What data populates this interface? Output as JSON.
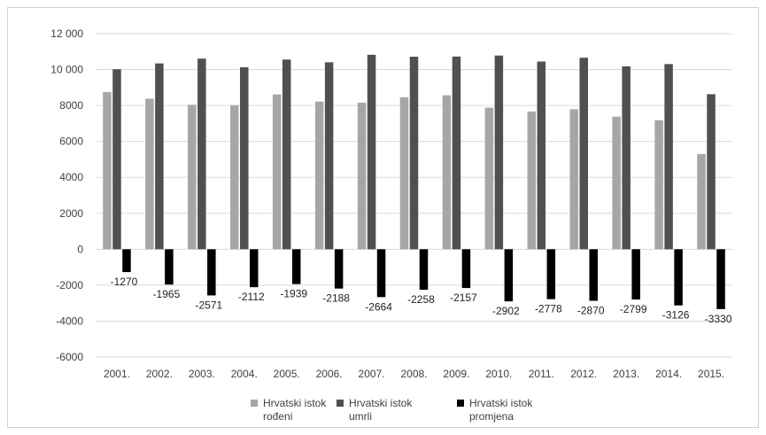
{
  "chart_data": {
    "type": "bar",
    "title": "",
    "xlabel": "",
    "ylabel": "",
    "categories": [
      "2001.",
      "2002.",
      "2003.",
      "2004.",
      "2005.",
      "2006.",
      "2007.",
      "2008.",
      "2009.",
      "2010.",
      "2011.",
      "2012.",
      "2013.",
      "2014.",
      "2015."
    ],
    "ylim": [
      -6000,
      12000
    ],
    "yticks": [
      12000,
      10000,
      8000,
      6000,
      4000,
      2000,
      0,
      -2000,
      -4000,
      -6000
    ],
    "ytick_labels": [
      "12 000",
      "10 000",
      "8000",
      "6000",
      "4000",
      "2000",
      "0",
      "-2000",
      "-4000",
      "-6000"
    ],
    "grid": true,
    "legend_position": "bottom",
    "series": [
      {
        "name": "Hrvatski istok rođeni",
        "legend_lines": [
          "Hrvatski istok",
          "rođeni"
        ],
        "color": "#a6a6a6",
        "values": [
          8750,
          8380,
          8040,
          8020,
          8620,
          8220,
          8160,
          8460,
          8570,
          7880,
          7670,
          7790,
          7380,
          7180,
          5300
        ]
      },
      {
        "name": "Hrvatski istok umrli",
        "legend_lines": [
          "Hrvatski istok",
          "umrli"
        ],
        "color": "#505050",
        "values": [
          10020,
          10345,
          10611,
          10132,
          10559,
          10408,
          10824,
          10718,
          10727,
          10782,
          10448,
          10660,
          10179,
          10306,
          8630
        ]
      },
      {
        "name": "Hrvatski istok promjena",
        "legend_lines": [
          "Hrvatski istok",
          "promjena"
        ],
        "color": "#000000",
        "values": [
          -1270,
          -1965,
          -2571,
          -2112,
          -1939,
          -2188,
          -2664,
          -2258,
          -2157,
          -2902,
          -2778,
          -2870,
          -2799,
          -3126,
          -3330
        ],
        "data_labels": [
          "-1270",
          "-1965",
          "-2571",
          "-2112",
          "-1939",
          "-2188",
          "-2664",
          "-2258",
          "-2157",
          "-2902",
          "-2778",
          "-2870",
          "-2799",
          "-3126",
          "-3330"
        ]
      }
    ]
  }
}
